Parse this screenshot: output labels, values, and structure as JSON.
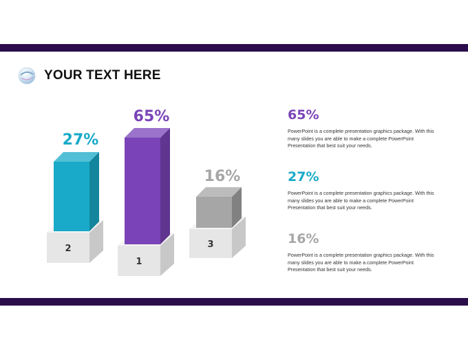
{
  "header": {
    "title": "YOUR TEXT HERE",
    "logo_icon": "glossy-globe-icon"
  },
  "colors": {
    "band": "#2a0d4a",
    "purple": "#7a44b8",
    "teal": "#18aac8",
    "gray": "#a6a6a6"
  },
  "chart_data": {
    "type": "bar",
    "categories": [
      "2",
      "1",
      "3"
    ],
    "values": [
      27,
      65,
      16
    ],
    "value_labels": [
      "27%",
      "65%",
      "16%"
    ],
    "colors": [
      "#18aac8",
      "#7a44b8",
      "#a6a6a6"
    ],
    "style": "3d-podium",
    "ylim": [
      0,
      100
    ]
  },
  "descriptions": [
    {
      "value": "65%",
      "color": "#7a44b8",
      "text": "PowerPoint is a complete presentation graphics package. With this many slides you are able to make a complete PowerPoint Presentation that best suit your needs."
    },
    {
      "value": "27%",
      "color": "#18aac8",
      "text": "PowerPoint is a complete presentation graphics package. With this many slides you are able to make a complete PowerPoint Presentation that best suit your needs."
    },
    {
      "value": "16%",
      "color": "#a6a6a6",
      "text": "PowerPoint is a complete presentation graphics package. With this many slides you are able to make a complete PowerPoint Presentation that best suit your needs."
    }
  ]
}
